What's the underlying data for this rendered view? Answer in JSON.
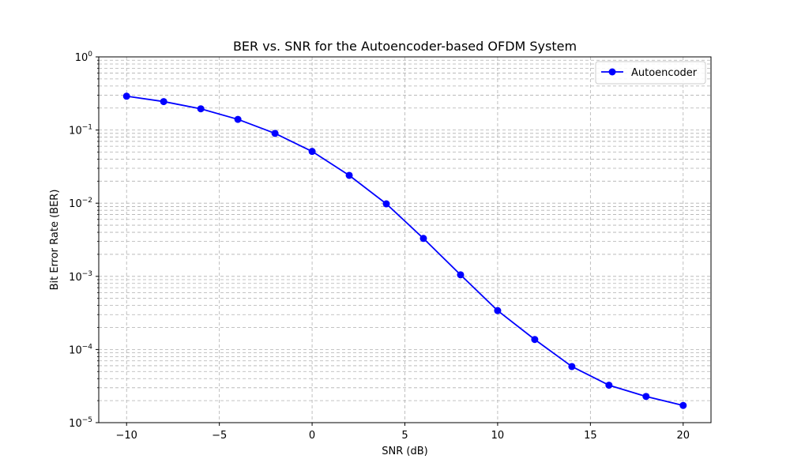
{
  "chart_data": {
    "type": "line",
    "title": "BER vs. SNR for the Autoencoder-based OFDM System",
    "xlabel": "SNR (dB)",
    "ylabel": "Bit Error Rate (BER)",
    "xlim": [
      -11.5,
      21.5
    ],
    "ylim": [
      1e-05,
      1
    ],
    "yscale": "log",
    "x_ticks": [
      -10,
      -5,
      0,
      5,
      10,
      15,
      20
    ],
    "x_tick_labels": [
      "−10",
      "−5",
      "0",
      "5",
      "10",
      "15",
      "20"
    ],
    "y_ticks": [
      1e-05,
      0.0001,
      0.001,
      0.01,
      0.1,
      1
    ],
    "y_tick_bases": [
      "10",
      "10",
      "10",
      "10",
      "10",
      "10"
    ],
    "y_tick_exponents": [
      "−5",
      "−4",
      "−3",
      "−2",
      "−1",
      "0"
    ],
    "grid": true,
    "legend_position": "top-right",
    "series": [
      {
        "name": "Autoencoder",
        "color": "#0000ff",
        "marker": "circle",
        "x": [
          -10,
          -8,
          -6,
          -4,
          -2,
          0,
          2,
          4,
          6,
          8,
          10,
          12,
          14,
          16,
          18,
          20
        ],
        "y": [
          0.29,
          0.245,
          0.195,
          0.14,
          0.09,
          0.051,
          0.024,
          0.0098,
          0.0033,
          0.00105,
          0.00034,
          0.000137,
          5.85e-05,
          3.25e-05,
          2.28e-05,
          1.72e-05
        ]
      }
    ]
  }
}
